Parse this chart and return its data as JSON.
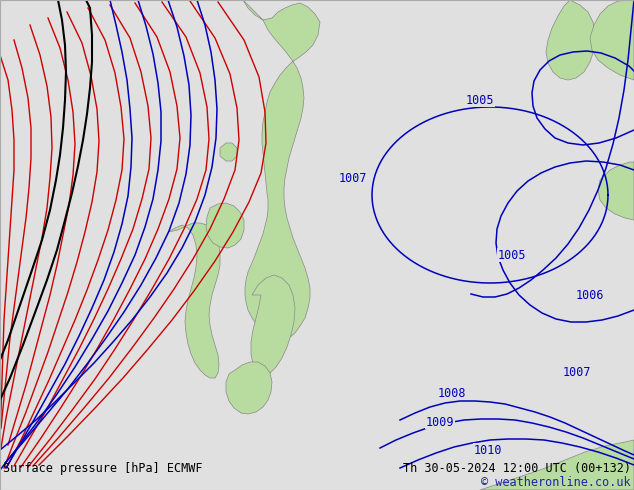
{
  "title_left": "Surface pressure [hPa] ECMWF",
  "title_right": "Th 30-05-2024 12:00 UTC (00+132)",
  "copyright": "© weatheronline.co.uk",
  "bg_color": "#e0e0e0",
  "land_color": "#b8dca0",
  "coast_color": "#888888",
  "isobar_blue": "#0000bb",
  "isobar_black": "#000000",
  "isobar_red": "#cc0000",
  "text_color": "#000000",
  "copy_color": "#2222aa",
  "font_size_label": 8.5,
  "font_size_title": 8.5
}
